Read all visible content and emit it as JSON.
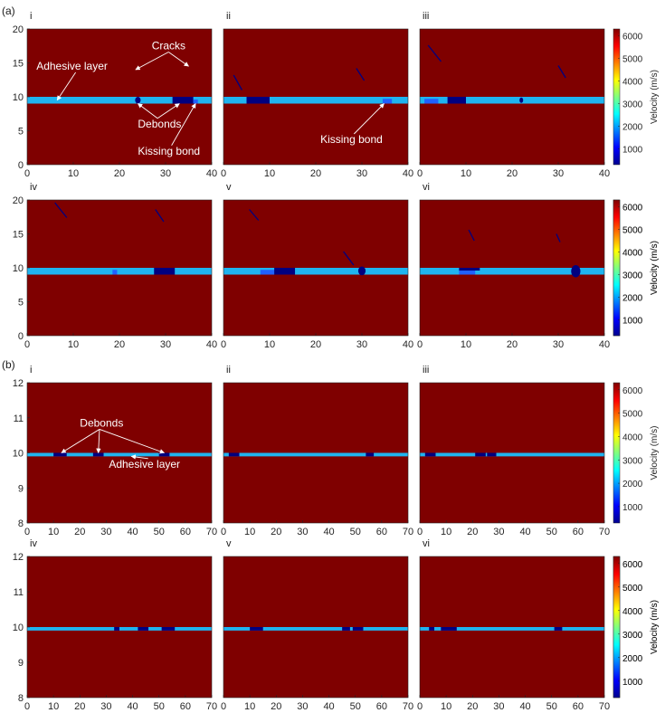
{
  "colors": {
    "background": "#7f0000",
    "adhesive": "#1fb4f0",
    "defect": "#00007f",
    "kissing": "#2060ff"
  },
  "chart_data": [
    {
      "type": "heatmap",
      "panel_letter": "(a)",
      "label": "i",
      "xlim": [
        0,
        40
      ],
      "ylim": [
        0,
        20
      ],
      "xticks": [
        0,
        10,
        20,
        30,
        40
      ],
      "yticks": [
        0,
        5,
        10,
        15,
        20
      ],
      "adhesive": [
        9,
        10
      ],
      "regions": [
        {
          "kind": "debond",
          "shape": "ellipse",
          "x": [
            23.4,
            24.6
          ],
          "y": [
            9,
            10
          ]
        },
        {
          "kind": "debond",
          "shape": "rect",
          "x": [
            31.5,
            36
          ],
          "y": [
            9,
            10
          ]
        },
        {
          "kind": "kissing",
          "shape": "rect",
          "x": [
            36,
            37
          ],
          "y": [
            9,
            9.6
          ]
        }
      ],
      "cracks": [],
      "annotations": [
        {
          "text": "Cracks",
          "x": 27,
          "y": 17,
          "arrows": [
            [
              23.5,
              14
            ],
            [
              35,
              14.5
            ]
          ]
        },
        {
          "text": "Adhesive layer",
          "x": 2,
          "y": 14,
          "arrows": [
            [
              6.5,
              9.5
            ]
          ]
        },
        {
          "text": "Debonds",
          "x": 24,
          "y": 5.5,
          "arrows": [
            [
              24,
              9
            ],
            [
              33,
              9
            ]
          ]
        },
        {
          "text": "Kissing bond",
          "x": 24,
          "y": 1.5,
          "arrows": [
            [
              36.5,
              9
            ]
          ]
        }
      ],
      "colorbar": {
        "label": "Velocity (m/s)",
        "ticks": [
          1000,
          2000,
          3000,
          4000,
          5000,
          6000
        ],
        "range": [
          300,
          6300
        ]
      }
    },
    {
      "type": "heatmap",
      "label": "ii",
      "xlim": [
        0,
        40
      ],
      "ylim": [
        0,
        20
      ],
      "xticks": [
        0,
        10,
        20,
        30,
        40
      ],
      "yticks": [],
      "adhesive": [
        9,
        10
      ],
      "regions": [
        {
          "kind": "debond",
          "shape": "rect",
          "x": [
            5,
            10
          ],
          "y": [
            9,
            10
          ]
        },
        {
          "kind": "kissing",
          "shape": "rect",
          "x": [
            34.5,
            36.5
          ],
          "y": [
            9,
            9.7
          ]
        }
      ],
      "cracks": [
        [
          [
            2.2,
            13.2
          ],
          [
            4.0,
            11.0
          ]
        ],
        [
          [
            28.8,
            14.2
          ],
          [
            30.5,
            12.4
          ]
        ]
      ],
      "annotations": [
        {
          "text": "Kissing bond",
          "x": 21,
          "y": 3.2,
          "arrows": [
            [
              34.8,
              9
            ]
          ]
        }
      ]
    },
    {
      "type": "heatmap",
      "label": "iii",
      "xlim": [
        0,
        40
      ],
      "ylim": [
        0,
        20
      ],
      "xticks": [
        0,
        10,
        20,
        30,
        40
      ],
      "yticks": [],
      "adhesive": [
        9,
        10
      ],
      "regions": [
        {
          "kind": "kissing",
          "shape": "rect",
          "x": [
            1,
            4
          ],
          "y": [
            9,
            9.7
          ]
        },
        {
          "kind": "debond",
          "shape": "rect",
          "x": [
            6,
            10
          ],
          "y": [
            9,
            10
          ]
        },
        {
          "kind": "debond",
          "shape": "ellipse",
          "x": [
            21.6,
            22.4
          ],
          "y": [
            9.1,
            9.9
          ]
        }
      ],
      "cracks": [
        [
          [
            1.8,
            17.6
          ],
          [
            4.6,
            15.2
          ]
        ],
        [
          [
            30.0,
            14.6
          ],
          [
            31.6,
            12.8
          ]
        ]
      ],
      "annotations": []
    },
    {
      "type": "heatmap",
      "label": "iv",
      "xlim": [
        0,
        40
      ],
      "ylim": [
        0,
        20
      ],
      "xticks": [
        0,
        10,
        20,
        30,
        40
      ],
      "yticks": [
        0,
        5,
        10,
        15,
        20
      ],
      "adhesive": [
        9,
        10
      ],
      "regions": [
        {
          "kind": "kissing",
          "shape": "rect",
          "x": [
            18.5,
            19.5
          ],
          "y": [
            9,
            9.7
          ]
        },
        {
          "kind": "debond",
          "shape": "rect",
          "x": [
            27.5,
            32
          ],
          "y": [
            9,
            10
          ]
        }
      ],
      "cracks": [
        [
          [
            6.0,
            19.6
          ],
          [
            8.6,
            17.4
          ]
        ],
        [
          [
            27.8,
            18.6
          ],
          [
            29.6,
            16.8
          ]
        ]
      ],
      "annotations": [],
      "colorbar": {
        "label": "Velocity (m/s)",
        "ticks": [
          1000,
          2000,
          3000,
          4000,
          5000,
          6000
        ],
        "range": [
          300,
          6300
        ]
      }
    },
    {
      "type": "heatmap",
      "label": "v",
      "xlim": [
        0,
        40
      ],
      "ylim": [
        0,
        20
      ],
      "xticks": [
        0,
        10,
        20,
        30,
        40
      ],
      "yticks": [],
      "adhesive": [
        9,
        10
      ],
      "regions": [
        {
          "kind": "kissing",
          "shape": "rect",
          "x": [
            8,
            11
          ],
          "y": [
            9,
            9.7
          ]
        },
        {
          "kind": "debond",
          "shape": "rect",
          "x": [
            11,
            15.5
          ],
          "y": [
            9,
            10
          ]
        },
        {
          "kind": "debond",
          "shape": "ellipse",
          "x": [
            29.2,
            30.8
          ],
          "y": [
            8.9,
            10.2
          ]
        }
      ],
      "cracks": [
        [
          [
            5.6,
            18.6
          ],
          [
            7.6,
            17.0
          ]
        ],
        [
          [
            26.0,
            12.4
          ],
          [
            28.2,
            10.4
          ]
        ]
      ],
      "annotations": []
    },
    {
      "type": "heatmap",
      "label": "vi",
      "xlim": [
        0,
        40
      ],
      "ylim": [
        0,
        20
      ],
      "xticks": [
        0,
        10,
        20,
        30,
        40
      ],
      "yticks": [],
      "adhesive": [
        9,
        10
      ],
      "regions": [
        {
          "kind": "debond",
          "shape": "rect",
          "x": [
            8.5,
            13
          ],
          "y": [
            9.6,
            10
          ]
        },
        {
          "kind": "kissing",
          "shape": "rect",
          "x": [
            8.5,
            12
          ],
          "y": [
            9,
            9.6
          ]
        },
        {
          "kind": "debond",
          "shape": "ellipse",
          "x": [
            32.8,
            34.8
          ],
          "y": [
            8.6,
            10.4
          ]
        }
      ],
      "cracks": [
        [
          [
            10.6,
            15.6
          ],
          [
            11.8,
            14.0
          ]
        ],
        [
          [
            29.6,
            15.0
          ],
          [
            30.4,
            13.8
          ]
        ]
      ],
      "annotations": [],
      "colorbar": {
        "label": "Velocity (m/s)",
        "ticks": [
          1000,
          2000,
          3000,
          4000,
          5000,
          6000
        ],
        "range": [
          300,
          6300
        ]
      }
    },
    {
      "type": "heatmap",
      "panel_letter": "(b)",
      "label": "i",
      "xlim": [
        0,
        70
      ],
      "ylim": [
        8,
        12
      ],
      "xticks": [
        0,
        10,
        20,
        30,
        40,
        50,
        60,
        70
      ],
      "yticks": [
        8,
        9,
        10,
        11,
        12
      ],
      "adhesive": [
        9.9,
        10
      ],
      "regions": [
        {
          "kind": "debond",
          "shape": "rect",
          "x": [
            10,
            15
          ],
          "y": [
            9.9,
            10
          ]
        },
        {
          "kind": "debond",
          "shape": "rect",
          "x": [
            25,
            29
          ],
          "y": [
            9.9,
            10
          ]
        },
        {
          "kind": "debond",
          "shape": "rect",
          "x": [
            50,
            54
          ],
          "y": [
            9.9,
            10
          ]
        }
      ],
      "cracks": [],
      "annotations": [
        {
          "text": "Debonds",
          "x": 20,
          "y": 10.75,
          "arrows": [
            [
              13,
              10
            ],
            [
              27,
              10
            ],
            [
              52,
              10
            ]
          ]
        },
        {
          "text": "Adhesive layer",
          "x": 31,
          "y": 9.58,
          "arrows": [
            [
              39.5,
              9.9
            ]
          ]
        }
      ],
      "colorbar": {
        "label": "Velocity (m/s)",
        "ticks": [
          1000,
          2000,
          3000,
          4000,
          5000,
          6000
        ],
        "range": [
          300,
          6300
        ]
      }
    },
    {
      "type": "heatmap",
      "label": "ii",
      "xlim": [
        0,
        70
      ],
      "ylim": [
        8,
        12
      ],
      "xticks": [
        0,
        10,
        20,
        30,
        40,
        50,
        60,
        70
      ],
      "yticks": [],
      "adhesive": [
        9.9,
        10
      ],
      "regions": [
        {
          "kind": "debond",
          "shape": "rect",
          "x": [
            2,
            6
          ],
          "y": [
            9.9,
            10
          ]
        },
        {
          "kind": "debond",
          "shape": "rect",
          "x": [
            54,
            57
          ],
          "y": [
            9.9,
            10
          ]
        }
      ],
      "cracks": [],
      "annotations": []
    },
    {
      "type": "heatmap",
      "label": "iii",
      "xlim": [
        0,
        70
      ],
      "ylim": [
        8,
        12
      ],
      "xticks": [
        0,
        10,
        20,
        30,
        40,
        50,
        60,
        70
      ],
      "yticks": [],
      "adhesive": [
        9.9,
        10
      ],
      "regions": [
        {
          "kind": "debond",
          "shape": "rect",
          "x": [
            2,
            6
          ],
          "y": [
            9.9,
            10
          ]
        },
        {
          "kind": "debond",
          "shape": "rect",
          "x": [
            21,
            25
          ],
          "y": [
            9.9,
            10
          ]
        },
        {
          "kind": "debond",
          "shape": "rect",
          "x": [
            25.5,
            29
          ],
          "y": [
            9.9,
            10
          ]
        }
      ],
      "cracks": [],
      "annotations": []
    },
    {
      "type": "heatmap",
      "label": "iv",
      "xlim": [
        0,
        70
      ],
      "ylim": [
        8,
        12
      ],
      "xticks": [
        0,
        10,
        20,
        30,
        40,
        50,
        60,
        70
      ],
      "yticks": [
        8,
        9,
        10,
        11,
        12
      ],
      "adhesive": [
        9.9,
        10
      ],
      "regions": [
        {
          "kind": "debond",
          "shape": "rect",
          "x": [
            33,
            35
          ],
          "y": [
            9.9,
            10
          ]
        },
        {
          "kind": "debond",
          "shape": "rect",
          "x": [
            42,
            46
          ],
          "y": [
            9.9,
            10
          ]
        },
        {
          "kind": "debond",
          "shape": "rect",
          "x": [
            51,
            56
          ],
          "y": [
            9.9,
            10
          ]
        }
      ],
      "cracks": [],
      "annotations": [],
      "colorbar": {
        "label": "Velocity (m/s)",
        "ticks": [
          1000,
          2000,
          3000,
          4000,
          5000,
          6000
        ],
        "range": [
          300,
          6300
        ]
      }
    },
    {
      "type": "heatmap",
      "label": "v",
      "xlim": [
        0,
        70
      ],
      "ylim": [
        8,
        12
      ],
      "xticks": [
        0,
        10,
        20,
        30,
        40,
        50,
        60,
        70
      ],
      "yticks": [],
      "adhesive": [
        9.9,
        10
      ],
      "regions": [
        {
          "kind": "debond",
          "shape": "rect",
          "x": [
            10,
            15
          ],
          "y": [
            9.9,
            10
          ]
        },
        {
          "kind": "debond",
          "shape": "rect",
          "x": [
            45,
            48
          ],
          "y": [
            9.9,
            10
          ]
        },
        {
          "kind": "debond",
          "shape": "rect",
          "x": [
            49,
            53
          ],
          "y": [
            9.9,
            10
          ]
        }
      ],
      "cracks": [],
      "annotations": []
    },
    {
      "type": "heatmap",
      "label": "vi",
      "xlim": [
        0,
        70
      ],
      "ylim": [
        8,
        12
      ],
      "xticks": [
        0,
        10,
        20,
        30,
        40,
        50,
        60,
        70
      ],
      "yticks": [],
      "adhesive": [
        9.9,
        10
      ],
      "regions": [
        {
          "kind": "debond",
          "shape": "rect",
          "x": [
            3.5,
            5.5
          ],
          "y": [
            9.9,
            10
          ]
        },
        {
          "kind": "debond",
          "shape": "rect",
          "x": [
            8,
            14
          ],
          "y": [
            9.9,
            10
          ]
        },
        {
          "kind": "debond",
          "shape": "rect",
          "x": [
            51,
            54
          ],
          "y": [
            9.9,
            10
          ]
        }
      ],
      "cracks": [],
      "annotations": [],
      "colorbar": {
        "label": "Velocity (m/s)",
        "ticks": [
          1000,
          2000,
          3000,
          4000,
          5000,
          6000
        ],
        "range": [
          300,
          6300
        ]
      }
    }
  ]
}
